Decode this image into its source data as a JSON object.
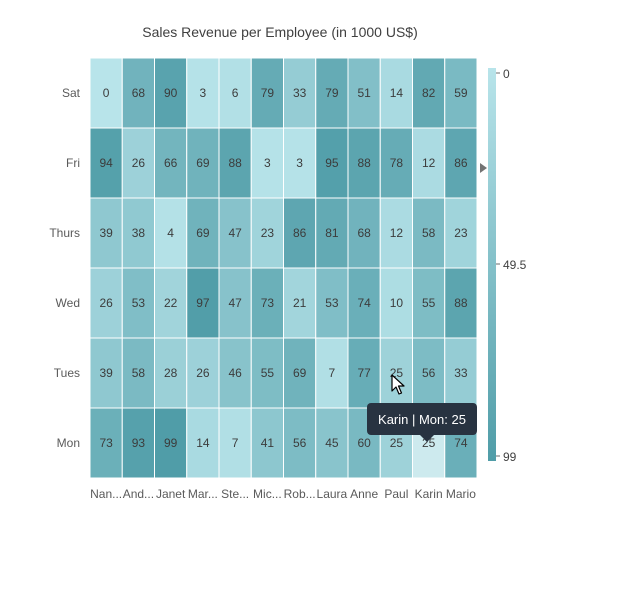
{
  "chart_data": {
    "type": "heatmap",
    "title": "Sales Revenue per Employee (in 1000 US$)",
    "x_categories": [
      "Nan...",
      "And...",
      "Janet",
      "Mar...",
      "Ste...",
      "Mic...",
      "Rob...",
      "Laura",
      "Anne",
      "Paul",
      "Karin",
      "Mario"
    ],
    "y_categories": [
      "Sat",
      "Fri",
      "Thurs",
      "Wed",
      "Tues",
      "Mon"
    ],
    "values": [
      [
        0,
        68,
        90,
        3,
        6,
        79,
        33,
        79,
        51,
        14,
        82,
        59
      ],
      [
        94,
        26,
        66,
        69,
        88,
        3,
        3,
        95,
        88,
        78,
        12,
        86
      ],
      [
        39,
        38,
        4,
        69,
        47,
        23,
        86,
        81,
        68,
        12,
        58,
        23
      ],
      [
        26,
        53,
        22,
        97,
        47,
        73,
        21,
        53,
        74,
        10,
        55,
        88
      ],
      [
        39,
        58,
        28,
        26,
        46,
        55,
        69,
        7,
        77,
        25,
        56,
        33
      ],
      [
        73,
        93,
        99,
        14,
        7,
        41,
        56,
        45,
        60,
        25,
        25,
        74
      ]
    ],
    "color_range": {
      "min": 0,
      "max": 99,
      "min_color": "#b8e4ea",
      "max_color": "#509da8"
    },
    "legend": {
      "labels": [
        "0",
        "49.5",
        "99"
      ],
      "position": "right"
    },
    "hovered_cell": {
      "x": "Karin",
      "y": "Mon",
      "value": 25,
      "highlight_color": "#cdeaee"
    }
  },
  "tooltip": {
    "text": "Karin | Mon: 25"
  },
  "colors": {
    "border": "#ffffff",
    "text": "#3c3c3c",
    "axis_text": "#5a5a5a",
    "pointer": "#737373"
  }
}
